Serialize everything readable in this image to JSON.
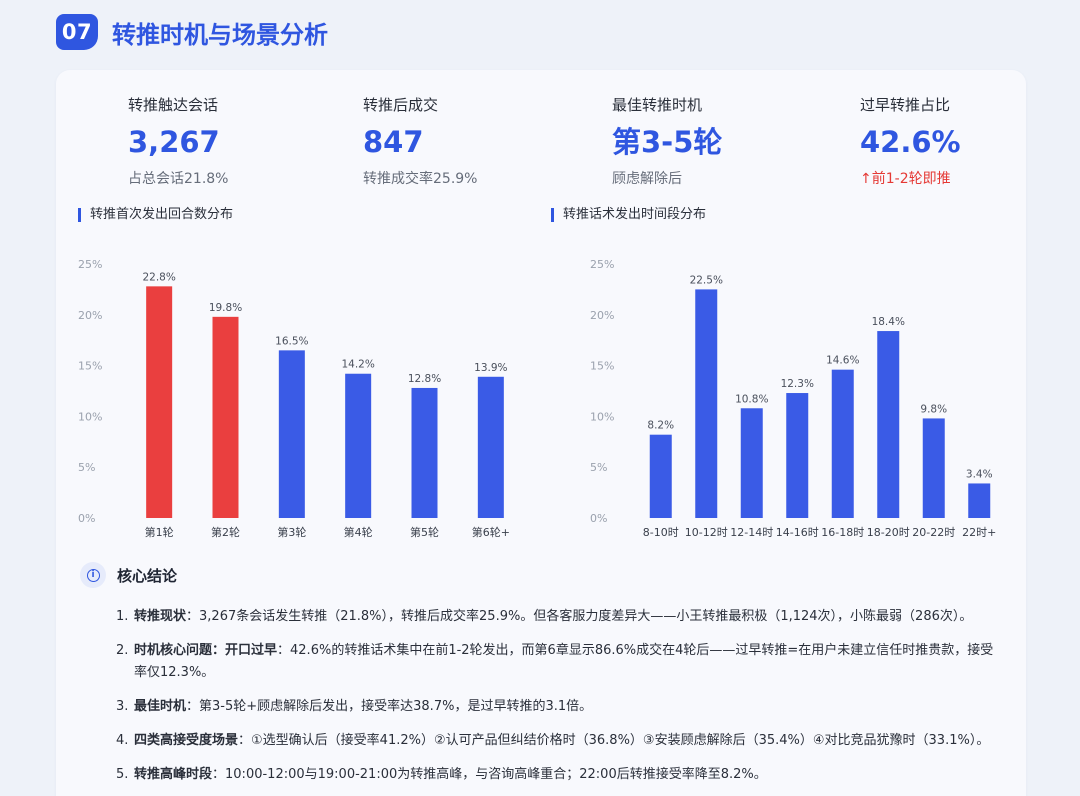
{
  "header": {
    "badge": "07",
    "title": "转推时机与场景分析"
  },
  "kpis": [
    {
      "label": "转推触达会话",
      "value": "3,267",
      "sub": "占总会话21.8%"
    },
    {
      "label": "转推后成交",
      "value": "847",
      "sub": "转推成交率25.9%"
    },
    {
      "label": "最佳转推时机",
      "value": "第3-5轮",
      "sub": "顾虑解除后"
    },
    {
      "label": "过早转推占比",
      "value": "42.6%",
      "sub": "↑前1-2轮即推"
    }
  ],
  "colors": {
    "accent": "#2f56e0",
    "bar_blue": "#3a5be6",
    "bar_red": "#ea3f3f",
    "warn": "#e53935"
  },
  "chart_data": [
    {
      "type": "bar",
      "title": "转推首次发出回合数分布",
      "categories": [
        "第1轮",
        "第2轮",
        "第3轮",
        "第4轮",
        "第5轮",
        "第6轮+"
      ],
      "values": [
        22.8,
        19.8,
        16.5,
        14.2,
        12.8,
        13.9
      ],
      "value_labels": [
        "22.8%",
        "19.8%",
        "16.5%",
        "14.2%",
        "12.8%",
        "13.9%"
      ],
      "highlight": [
        true,
        true,
        false,
        false,
        false,
        false
      ],
      "yticks": [
        "0%",
        "5%",
        "10%",
        "15%",
        "20%",
        "25%"
      ],
      "ylim": [
        0,
        25
      ],
      "xlabel": "",
      "ylabel": ""
    },
    {
      "type": "bar",
      "title": "转推话术发出时间段分布",
      "categories": [
        "8-10时",
        "10-12时",
        "12-14时",
        "14-16时",
        "16-18时",
        "18-20时",
        "20-22时",
        "22时+"
      ],
      "values": [
        8.2,
        22.5,
        10.8,
        12.3,
        14.6,
        18.4,
        9.8,
        3.4
      ],
      "value_labels": [
        "8.2%",
        "22.5%",
        "10.8%",
        "12.3%",
        "14.6%",
        "18.4%",
        "9.8%",
        "3.4%"
      ],
      "highlight": [
        false,
        false,
        false,
        false,
        false,
        false,
        false,
        false
      ],
      "yticks": [
        "0%",
        "5%",
        "10%",
        "15%",
        "20%",
        "25%"
      ],
      "ylim": [
        0,
        25
      ],
      "xlabel": "",
      "ylabel": ""
    }
  ],
  "conclusion": {
    "title": "核心结论",
    "points": [
      {
        "num": "1.",
        "bold": "转推现状",
        "text": "：3,267条会话发生转推（21.8%），转推后成交率25.9%。但各客服力度差异大——小王转推最积极（1,124次），小陈最弱（286次）。"
      },
      {
        "num": "2.",
        "bold": "时机核心问题：开口过早",
        "text": "：42.6%的转推话术集中在前1-2轮发出，而第6章显示86.6%成交在4轮后——过早转推=在用户未建立信任时推贵款，接受率仅12.3%。"
      },
      {
        "num": "3.",
        "bold": "最佳时机",
        "text": "：第3-5轮+顾虑解除后发出，接受率达38.7%，是过早转推的3.1倍。"
      },
      {
        "num": "4.",
        "bold": "四类高接受度场景",
        "text": "：①选型确认后（接受率41.2%）②认可产品但纠结价格时（36.8%）③安装顾虑解除后（35.4%）④对比竞品犹豫时（33.1%）。"
      },
      {
        "num": "5.",
        "bold": "转推高峰时段",
        "text": "：10:00-12:00与19:00-21:00为转推高峰，与咨询高峰重合；22:00后转推接受率降至8.2%。"
      }
    ]
  }
}
